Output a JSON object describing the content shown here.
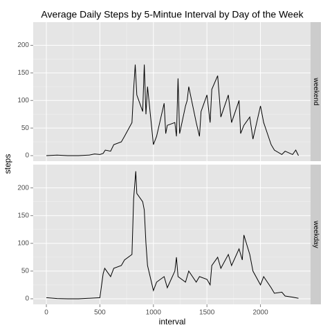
{
  "chart_data": {
    "type": "line",
    "title": "Average Daily Steps by 5-Mintue Interval by Day of the Week",
    "xlabel": "interval",
    "ylabel": "steps",
    "xlim": [
      -123,
      2468
    ],
    "ylim": [
      -10,
      242
    ],
    "xticks": [
      0,
      500,
      1000,
      1500,
      2000
    ],
    "yticks": [
      0,
      50,
      100,
      150,
      200
    ],
    "grid": true,
    "series": [
      {
        "name": "weekend",
        "color": "#000000",
        "x": [
          0,
          100,
          200,
          300,
          400,
          450,
          500,
          530,
          550,
          600,
          630,
          700,
          730,
          800,
          815,
          830,
          845,
          900,
          915,
          930,
          945,
          1000,
          1030,
          1100,
          1115,
          1130,
          1200,
          1215,
          1230,
          1245,
          1300,
          1315,
          1330,
          1400,
          1430,
          1445,
          1500,
          1530,
          1545,
          1600,
          1630,
          1700,
          1730,
          1800,
          1815,
          1845,
          1900,
          1930,
          2000,
          2030,
          2100,
          2130,
          2200,
          2230,
          2300,
          2330,
          2355
        ],
        "values": [
          0,
          1,
          0,
          0,
          1,
          3,
          2,
          4,
          10,
          8,
          20,
          25,
          35,
          60,
          120,
          165,
          110,
          80,
          165,
          75,
          125,
          20,
          35,
          95,
          40,
          55,
          60,
          35,
          140,
          40,
          90,
          100,
          125,
          60,
          35,
          80,
          110,
          60,
          120,
          145,
          70,
          110,
          60,
          100,
          40,
          55,
          70,
          30,
          90,
          60,
          20,
          10,
          2,
          8,
          2,
          10,
          0
        ]
      },
      {
        "name": "weekday",
        "color": "#000000",
        "x": [
          0,
          100,
          200,
          300,
          400,
          500,
          530,
          545,
          600,
          630,
          700,
          730,
          800,
          815,
          835,
          845,
          900,
          915,
          930,
          945,
          1000,
          1030,
          1100,
          1130,
          1200,
          1215,
          1230,
          1300,
          1330,
          1400,
          1430,
          1500,
          1530,
          1545,
          1600,
          1630,
          1700,
          1730,
          1800,
          1830,
          1845,
          1900,
          1930,
          2000,
          2030,
          2100,
          2130,
          2200,
          2230,
          2300,
          2355
        ],
        "values": [
          2,
          0.5,
          0,
          0,
          1,
          2,
          45,
          55,
          40,
          55,
          60,
          70,
          80,
          180,
          230,
          190,
          175,
          160,
          100,
          60,
          15,
          30,
          40,
          20,
          50,
          75,
          40,
          30,
          50,
          30,
          40,
          35,
          25,
          60,
          75,
          55,
          80,
          60,
          90,
          70,
          115,
          80,
          50,
          25,
          40,
          20,
          10,
          12,
          5,
          3,
          1
        ]
      }
    ]
  }
}
